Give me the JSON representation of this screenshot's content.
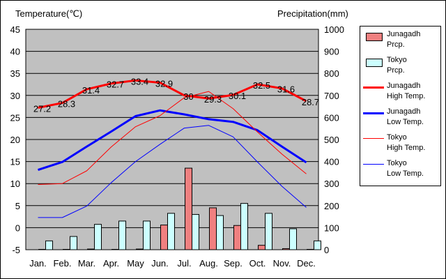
{
  "chart_data": {
    "type": "bar+line",
    "title_left": "Temperature(℃)",
    "title_right": "Precipitation(mm)",
    "categories": [
      "Jan.",
      "Feb.",
      "Mar.",
      "Apr.",
      "May",
      "Jun.",
      "Jul.",
      "Aug.",
      "Sep.",
      "Oct.",
      "Nov.",
      "Dec."
    ],
    "y_left": {
      "min": -5,
      "max": 45,
      "ticks": [
        -5,
        0,
        5,
        10,
        15,
        20,
        25,
        30,
        35,
        40,
        45
      ]
    },
    "y_right": {
      "min": 0,
      "max": 1000,
      "ticks": [
        0,
        100,
        200,
        300,
        400,
        500,
        600,
        700,
        800,
        900,
        1000
      ]
    },
    "bars": [
      {
        "name": "Junagadh Prcp.",
        "color": "#f08080",
        "values": [
          1,
          0,
          3,
          1,
          3,
          112,
          370,
          190,
          110,
          20,
          5,
          0
        ]
      },
      {
        "name": "Tokyo Prcp.",
        "color": "#ccffff",
        "values": [
          40,
          60,
          115,
          130,
          130,
          165,
          160,
          155,
          210,
          165,
          95,
          40
        ]
      }
    ],
    "lines": [
      {
        "name": "Junagadh High Temp.",
        "color": "#ff0000",
        "width": 3,
        "values": [
          27.2,
          28.3,
          31.4,
          32.7,
          33.4,
          32.9,
          30.0,
          29.3,
          30.1,
          32.5,
          31.6,
          28.7
        ],
        "labels": [
          "27.2",
          "28.3",
          "31.4",
          "32.7",
          "33.4",
          "32.9",
          "30",
          "29.3",
          "30.1",
          "32.5",
          "31.6",
          "28.7"
        ]
      },
      {
        "name": "Junagadh Low Temp.",
        "color": "#0000ff",
        "width": 3,
        "values": [
          13.1,
          14.9,
          18.4,
          21.8,
          25.3,
          26.6,
          25.7,
          24.6,
          24.0,
          22.1,
          18.4,
          14.8
        ]
      },
      {
        "name": "Tokyo High Temp.",
        "color": "#ff0000",
        "width": 1,
        "values": [
          9.8,
          10.0,
          12.9,
          18.3,
          22.9,
          25.4,
          29.5,
          30.9,
          27.0,
          21.7,
          16.7,
          12.2
        ]
      },
      {
        "name": "Tokyo Low Temp.",
        "color": "#0000ff",
        "width": 1,
        "values": [
          2.3,
          2.3,
          4.9,
          10.2,
          15.0,
          18.9,
          22.6,
          23.2,
          20.6,
          14.9,
          9.4,
          4.6
        ]
      }
    ],
    "legend": [
      {
        "kind": "bar",
        "color": "#f08080",
        "label": "Junagadh\nPrcp."
      },
      {
        "kind": "bar",
        "color": "#ccffff",
        "label": "Tokyo\nPrcp."
      },
      {
        "kind": "line",
        "color": "#ff0000",
        "width": 3,
        "label": "Junagadh\nHigh Temp."
      },
      {
        "kind": "line",
        "color": "#0000ff",
        "width": 3,
        "label": "Junagadh\nLow Temp."
      },
      {
        "kind": "line",
        "color": "#ff0000",
        "width": 1,
        "label": "Tokyo\nHigh Temp."
      },
      {
        "kind": "line",
        "color": "#0000ff",
        "width": 1,
        "label": "Tokyo\nLow Temp."
      }
    ],
    "plot_bg": "#c0c0c0",
    "grid": true,
    "legend_position": "right"
  }
}
